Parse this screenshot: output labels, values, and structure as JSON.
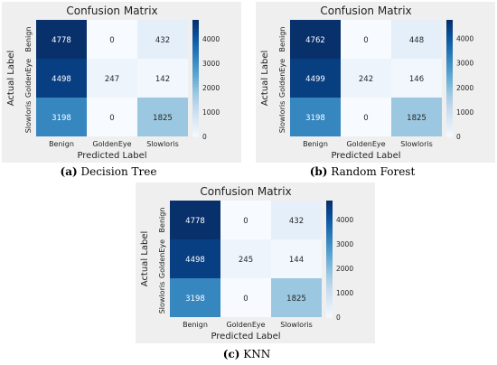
{
  "figure": {
    "captions": [
      {
        "letter": "(a)",
        "text": "Decision Tree"
      },
      {
        "letter": "(b)",
        "text": "Random Forest"
      },
      {
        "letter": "(c)",
        "text": "KNN"
      }
    ]
  },
  "chart_data": [
    {
      "type": "heatmap",
      "title": "Confusion Matrix",
      "xlabel": "Predicted Label",
      "ylabel": "Actual Label",
      "x_categories": [
        "Benign",
        "GoldenEye",
        "Slowloris"
      ],
      "y_categories": [
        "Benign",
        "GoldenEye",
        "Slowloris"
      ],
      "values": [
        [
          4778,
          0,
          432
        ],
        [
          4498,
          247,
          142
        ],
        [
          3198,
          0,
          1825
        ]
      ],
      "colorbar": {
        "ticks": [
          0,
          1000,
          2000,
          3000,
          4000
        ],
        "range": [
          0,
          4778
        ],
        "cmap": "Blues"
      },
      "grid": false
    },
    {
      "type": "heatmap",
      "title": "Confusion Matrix",
      "xlabel": "Predicted Label",
      "ylabel": "Actual Label",
      "x_categories": [
        "Benign",
        "GoldenEye",
        "Slowloris"
      ],
      "y_categories": [
        "Benign",
        "GoldenEye",
        "Slowloris"
      ],
      "values": [
        [
          4762,
          0,
          448
        ],
        [
          4499,
          242,
          146
        ],
        [
          3198,
          0,
          1825
        ]
      ],
      "colorbar": {
        "ticks": [
          0,
          1000,
          2000,
          3000,
          4000
        ],
        "range": [
          0,
          4762
        ],
        "cmap": "Blues"
      },
      "grid": false
    },
    {
      "type": "heatmap",
      "title": "Confusion Matrix",
      "xlabel": "Predicted Label",
      "ylabel": "Actual Label",
      "x_categories": [
        "Benign",
        "GoldenEye",
        "Slowloris"
      ],
      "y_categories": [
        "Benign",
        "GoldenEye",
        "Slowloris"
      ],
      "values": [
        [
          4778,
          0,
          432
        ],
        [
          4498,
          245,
          144
        ],
        [
          3198,
          0,
          1825
        ]
      ],
      "colorbar": {
        "ticks": [
          0,
          1000,
          2000,
          3000,
          4000
        ],
        "range": [
          0,
          4778
        ],
        "cmap": "Blues"
      },
      "grid": false
    }
  ]
}
